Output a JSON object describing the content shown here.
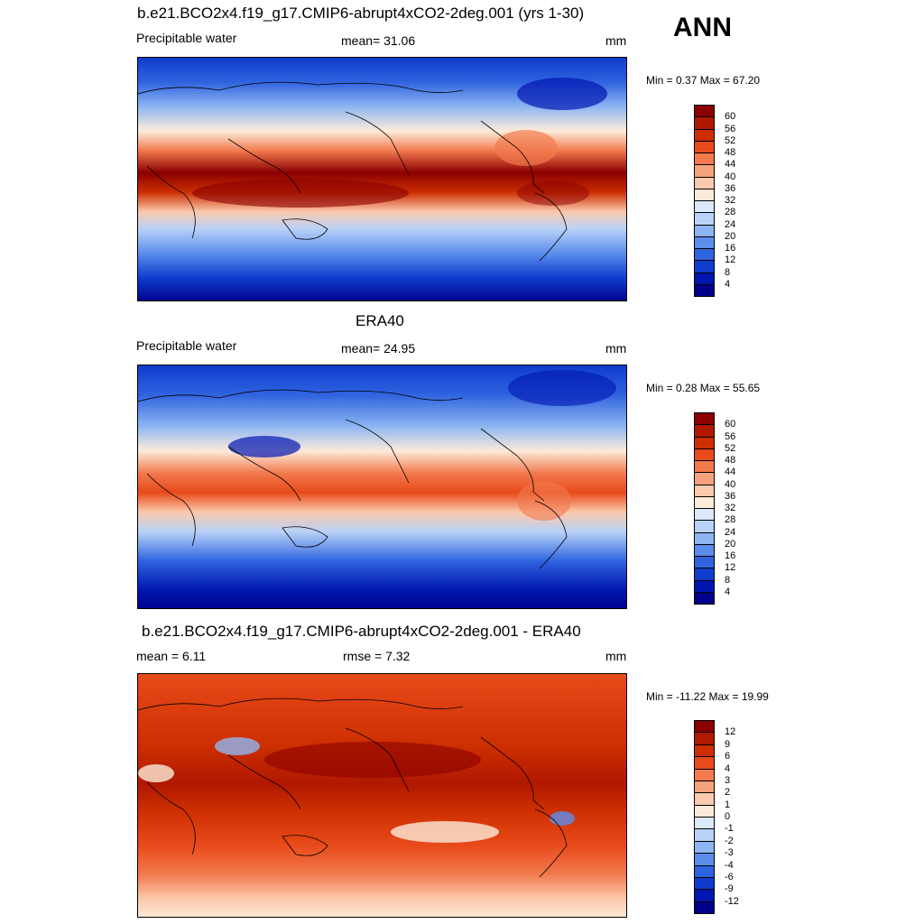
{
  "season": "ANN",
  "panels": [
    {
      "id": "model",
      "title": "b.e21.BCO2x4.f19_g17.CMIP6-abrupt4xCO2-2deg.001 (yrs 1-30)",
      "left_label": "Precipitable water",
      "center_label": "mean=  31.06",
      "units": "mm",
      "minmax": "Min =   0.37 Max =  67.20"
    },
    {
      "id": "obs",
      "title": "ERA40",
      "left_label": "Precipitable water",
      "center_label": "mean=  24.95",
      "units": "mm",
      "minmax": "Min =   0.28 Max =  55.65"
    },
    {
      "id": "diff",
      "title": "b.e21.BCO2x4.f19_g17.CMIP6-abrupt4xCO2-2deg.001 - ERA40",
      "left_label": "mean =   6.11",
      "center_label": "rmse =   7.32",
      "units": "mm",
      "minmax": "Min = -11.22 Max =  19.99"
    }
  ],
  "colorbars": {
    "absolute": {
      "ticks": [
        "60",
        "56",
        "52",
        "48",
        "44",
        "40",
        "36",
        "32",
        "28",
        "24",
        "20",
        "16",
        "12",
        "8",
        "4"
      ],
      "colors": [
        "#8b0000",
        "#b01800",
        "#cc2e00",
        "#e84a1a",
        "#f27a4e",
        "#f7a27e",
        "#fbc9ad",
        "#fdebd9",
        "#dce9fb",
        "#b8d2f8",
        "#8eb6f2",
        "#5c8dec",
        "#2f63df",
        "#0f3ccd",
        "#0016b0",
        "#00008b"
      ]
    },
    "difference": {
      "ticks": [
        "12",
        "9",
        "6",
        "4",
        "3",
        "2",
        "1",
        "0",
        "-1",
        "-2",
        "-3",
        "-4",
        "-6",
        "-9",
        "-12"
      ],
      "colors": [
        "#8b0000",
        "#b01800",
        "#cc2e00",
        "#e84a1a",
        "#f27a4e",
        "#f7a27e",
        "#fbc9ad",
        "#fdebd9",
        "#dce9fb",
        "#b8d2f8",
        "#8eb6f2",
        "#5c8dec",
        "#2f63df",
        "#0f3ccd",
        "#0016b0",
        "#00008b"
      ]
    }
  }
}
